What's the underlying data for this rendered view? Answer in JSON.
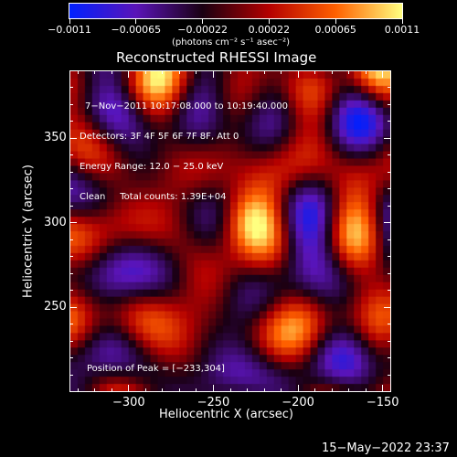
{
  "colorbar": {
    "tick_labels": [
      "−0.0011",
      "−0.00065",
      "−0.00022",
      "0.00022",
      "0.00065",
      "0.0011"
    ],
    "units": "(photons cm⁻² s⁻¹ asec⁻²)",
    "colors": [
      "#0020ff",
      "#5a14b8",
      "#1a0012",
      "#b40000",
      "#ff6000",
      "#ffff80"
    ]
  },
  "plot": {
    "title": "Reconstructed RHESSI Image",
    "overlay_lines": [
      "7−Nov−2011 10:17:08.000 to 10:19:40.000",
      "Detectors: 3F 4F 5F 6F 7F 8F, Att 0",
      "Energy Range: 12.0 − 25.0 keV",
      "Clean     Total counts: 1.39E+04"
    ],
    "peak_label": "Position of Peak = [−233,304]"
  },
  "chart_data": {
    "type": "heatmap",
    "title": "Reconstructed RHESSI Image",
    "xlabel": "Heliocentric X (arcsec)",
    "ylabel": "Heliocentric Y (arcsec)",
    "xlim": [
      -335,
      -145
    ],
    "ylim": [
      200,
      390
    ],
    "xticks": [
      -300,
      -250,
      -200,
      -150
    ],
    "xtick_labels": [
      "−300",
      "−250",
      "−200",
      "−150"
    ],
    "yticks": [
      250,
      300,
      350
    ],
    "ytick_labels": [
      "250",
      "300",
      "350"
    ],
    "value_range": [
      -0.0011,
      0.0011
    ],
    "peak_position": [
      -233,
      304
    ]
  },
  "footer": {
    "timestamp": "15−May−2022 23:37"
  }
}
